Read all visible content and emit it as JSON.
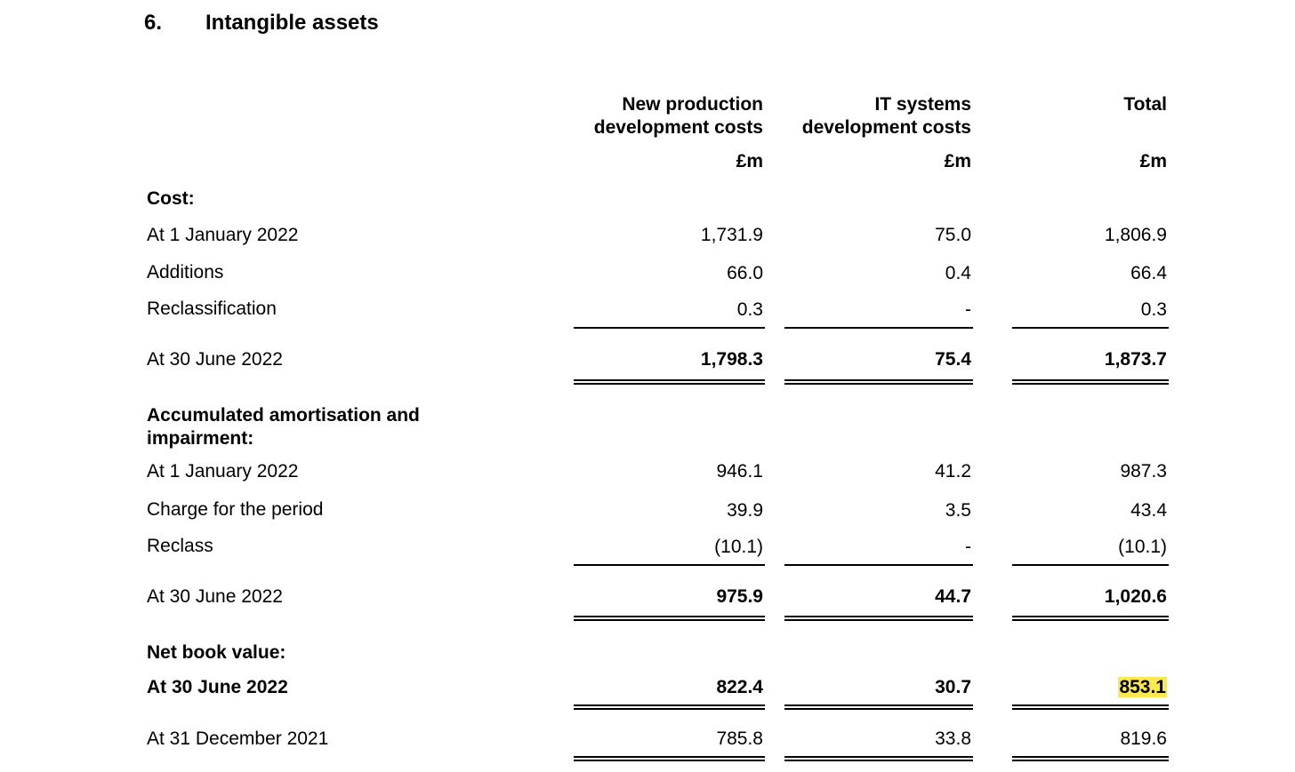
{
  "note": {
    "number": "6.",
    "title": "Intangible assets"
  },
  "columns": [
    {
      "line1": "New production",
      "line2": "development costs",
      "unit": "£m"
    },
    {
      "line1": "IT systems",
      "line2": "development costs",
      "unit": "£m"
    },
    {
      "line1": "",
      "line2": "Total",
      "unit": "£m"
    }
  ],
  "cost": {
    "heading": "Cost:",
    "rows": [
      {
        "label": "At 1 January 2022",
        "values": [
          "1,731.9",
          "75.0",
          "1,806.9"
        ]
      },
      {
        "label": "Additions",
        "values": [
          "66.0",
          "0.4",
          "66.4"
        ]
      },
      {
        "label": "Reclassification",
        "values": [
          "0.3",
          "-",
          "0.3"
        ]
      }
    ],
    "total": {
      "label": "At 30 June 2022",
      "values": [
        "1,798.3",
        "75.4",
        "1,873.7"
      ]
    }
  },
  "amortisation": {
    "heading_line1": "Accumulated amortisation and",
    "heading_line2": "impairment:",
    "rows": [
      {
        "label": "At 1 January 2022",
        "values": [
          "946.1",
          "41.2",
          "987.3"
        ]
      },
      {
        "label": "Charge for the period",
        "values": [
          "39.9",
          "3.5",
          "43.4"
        ]
      },
      {
        "label": "Reclass",
        "values": [
          "(10.1)",
          "-",
          "(10.1)"
        ]
      }
    ],
    "total": {
      "label": "At 30 June 2022",
      "values": [
        "975.9",
        "44.7",
        "1,020.6"
      ]
    }
  },
  "nbv": {
    "heading": "Net book value:",
    "current": {
      "label": "At 30 June 2022",
      "values": [
        "822.4",
        "30.7",
        "853.1"
      ]
    },
    "prior": {
      "label": "At 31 December 2021",
      "values": [
        "785.8",
        "33.8",
        "819.6"
      ]
    }
  },
  "highlight_color": "#fce94f"
}
